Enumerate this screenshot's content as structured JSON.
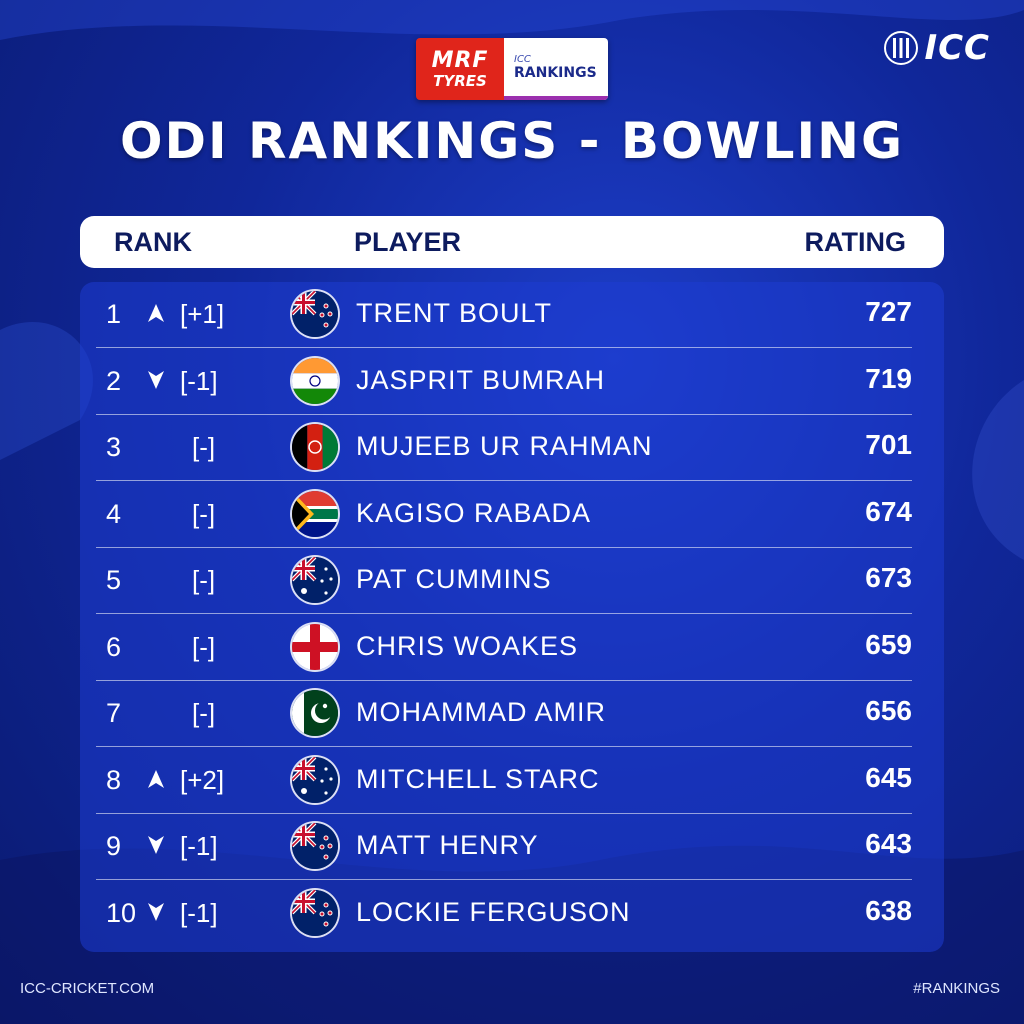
{
  "sponsor": {
    "brand_line1": "MRF",
    "brand_line2": "TYRES",
    "icc_small": "ICC",
    "rankings_label": "RANKINGS"
  },
  "logo": {
    "text": "ICC",
    "icon": "icc-stumps-logo"
  },
  "title": "ODI RANKINGS - BOWLING",
  "table": {
    "headers": {
      "rank": "RANK",
      "player": "PLAYER",
      "rating": "RATING"
    },
    "rows": [
      {
        "rank": "1",
        "trend": "up",
        "change": "[+1]",
        "flag": "new-zealand",
        "player": "TRENT BOULT",
        "rating": "727"
      },
      {
        "rank": "2",
        "trend": "down",
        "change": "[-1]",
        "flag": "india",
        "player": "JASPRIT BUMRAH",
        "rating": "719"
      },
      {
        "rank": "3",
        "trend": "none",
        "change": "[-]",
        "flag": "afghanistan",
        "player": "MUJEEB UR RAHMAN",
        "rating": "701"
      },
      {
        "rank": "4",
        "trend": "none",
        "change": "[-]",
        "flag": "south-africa",
        "player": "KAGISO RABADA",
        "rating": "674"
      },
      {
        "rank": "5",
        "trend": "none",
        "change": "[-]",
        "flag": "australia",
        "player": "PAT CUMMINS",
        "rating": "673"
      },
      {
        "rank": "6",
        "trend": "none",
        "change": "[-]",
        "flag": "england",
        "player": "CHRIS WOAKES",
        "rating": "659"
      },
      {
        "rank": "7",
        "trend": "none",
        "change": "[-]",
        "flag": "pakistan",
        "player": "MOHAMMAD AMIR",
        "rating": "656"
      },
      {
        "rank": "8",
        "trend": "up",
        "change": "[+2]",
        "flag": "australia",
        "player": "MITCHELL STARC",
        "rating": "645"
      },
      {
        "rank": "9",
        "trend": "down",
        "change": "[-1]",
        "flag": "new-zealand",
        "player": "MATT HENRY",
        "rating": "643"
      },
      {
        "rank": "10",
        "trend": "down",
        "change": "[-1]",
        "flag": "new-zealand",
        "player": "LOCKIE FERGUSON",
        "rating": "638"
      }
    ]
  },
  "footer": {
    "website": "ICC-CRICKET.COM",
    "hashtag": "#RANKINGS"
  },
  "colors": {
    "background": "#10279a",
    "panel": "#1e3cd2",
    "header_text": "#0d1b5e",
    "mrf_red": "#e0251b"
  }
}
